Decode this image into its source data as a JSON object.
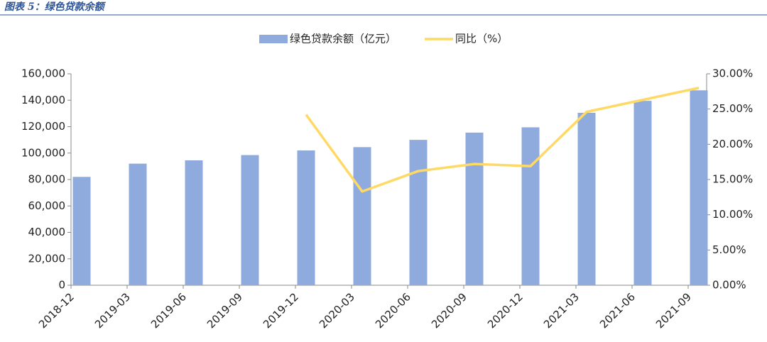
{
  "chart_data": {
    "type": "bar_line",
    "title": "图表 5：绿色贷款余额",
    "categories": [
      "2018-12",
      "2019-03",
      "2019-06",
      "2019-09",
      "2019-12",
      "2020-03",
      "2020-06",
      "2020-09",
      "2020-12",
      "2021-03",
      "2021-06",
      "2021-09"
    ],
    "series": [
      {
        "name": "绿色贷款余额（亿元）",
        "type": "bar",
        "color": "#8faadc",
        "values": [
          82000,
          92000,
          94500,
          98500,
          102000,
          104500,
          110000,
          115500,
          119500,
          130500,
          139500,
          147500
        ]
      },
      {
        "name": "同比（%）",
        "type": "line",
        "color": "#ffd966",
        "axis": "y2",
        "values": [
          null,
          null,
          null,
          null,
          24.2,
          13.3,
          16.2,
          17.2,
          16.9,
          24.6,
          26.3,
          28.0
        ]
      }
    ],
    "ylim": [
      0,
      160000
    ],
    "yticks": [
      0,
      {
        "value": 20000,
        "label": "20,000"
      },
      {
        "value": 40000,
        "label": "40,000"
      },
      {
        "value": 60000,
        "label": "60,000"
      },
      {
        "value": 80000,
        "label": "80,000"
      },
      {
        "value": 100000,
        "label": "100,000"
      },
      {
        "value": 120000,
        "label": "120,000"
      },
      {
        "value": 140000,
        "label": "140,000"
      },
      {
        "value": 160000,
        "label": "160,000"
      }
    ],
    "y2lim": [
      0,
      30
    ],
    "y2ticks": [
      {
        "value": 0,
        "label": "0.00%"
      },
      {
        "value": 5,
        "label": "5.00%"
      },
      {
        "value": 10,
        "label": "10.00%"
      },
      {
        "value": 15,
        "label": "15.00%"
      },
      {
        "value": 20,
        "label": "20.00%"
      },
      {
        "value": 25,
        "label": "25.00%"
      },
      {
        "value": 30,
        "label": "30.00%"
      }
    ],
    "grid": false,
    "legend": "top"
  }
}
